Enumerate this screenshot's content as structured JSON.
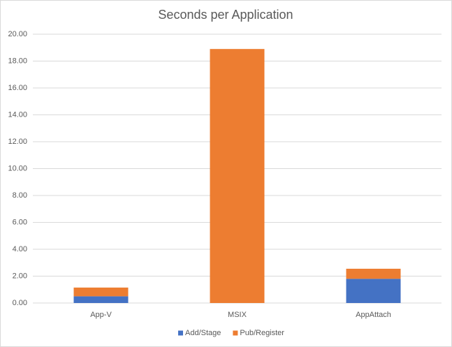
{
  "chart_data": {
    "type": "stacked_bar",
    "title": "Seconds per Application",
    "categories": [
      "App-V",
      "MSIX",
      "AppAttach"
    ],
    "series": [
      {
        "name": "Add/Stage",
        "color": "#4472c4",
        "values": [
          0.5,
          0,
          1.8
        ]
      },
      {
        "name": "Pub/Register",
        "color": "#ed7d31",
        "values": [
          0.65,
          18.9,
          0.75
        ]
      }
    ],
    "ylim": [
      0,
      20
    ],
    "yticks": [
      {
        "value": 0,
        "label": "0.00"
      },
      {
        "value": 2,
        "label": "2.00"
      },
      {
        "value": 4,
        "label": "4.00"
      },
      {
        "value": 6,
        "label": "6.00"
      },
      {
        "value": 8,
        "label": "8.00"
      },
      {
        "value": 10,
        "label": "10.00"
      },
      {
        "value": 12,
        "label": "12.00"
      },
      {
        "value": 14,
        "label": "14.00"
      },
      {
        "value": 16,
        "label": "16.00"
      },
      {
        "value": 18,
        "label": "18.00"
      },
      {
        "value": 20,
        "label": "20.00"
      }
    ],
    "grid": true,
    "legend": "bottom"
  }
}
